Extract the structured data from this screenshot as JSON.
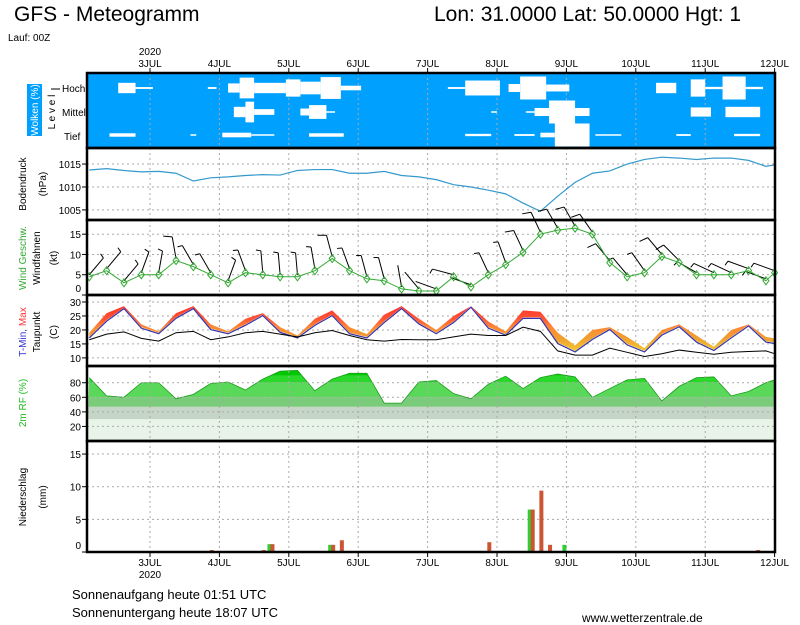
{
  "header": {
    "title": "GFS - Meteogramm",
    "location": "Lon: 31.0000 Lat: 50.0000 Hgt: 1",
    "run": "Lauf: 00Z"
  },
  "footer": {
    "sunrise": "Sonnenaufgang heute 01:51 UTC",
    "sunset": "Sonnenuntergang heute 18:07 UTC",
    "site": "www.wetterzentrale.de"
  },
  "time_axis": {
    "year": "2020",
    "range": [
      "2020-07-02T03",
      "2020-07-12T00"
    ],
    "days": [
      {
        "label": "3JUL",
        "date": "2020-07-03T00"
      },
      {
        "label": "4JUL",
        "date": "2020-07-04T00"
      },
      {
        "label": "5JUL",
        "date": "2020-07-05T00"
      },
      {
        "label": "6JUL",
        "date": "2020-07-06T00"
      },
      {
        "label": "7JUL",
        "date": "2020-07-07T00"
      },
      {
        "label": "8JUL",
        "date": "2020-07-08T00"
      },
      {
        "label": "9JUL",
        "date": "2020-07-09T00"
      },
      {
        "label": "10JUL",
        "date": "2020-07-10T00"
      },
      {
        "label": "11JUL",
        "date": "2020-07-11T00"
      },
      {
        "label": "12JUL",
        "date": "2020-07-12T00"
      }
    ]
  },
  "labels": {
    "clouds": "Wolken (%)",
    "level": "L e v e l",
    "levels": [
      "Hoch",
      "Mittel",
      "Tief"
    ],
    "pressure": "Bodendruck",
    "pressure_unit": "(hPa)",
    "wind": "Wind Geschw.",
    "wind_barbs": "Windfahnen",
    "wind_unit": "(kt)",
    "tmin": "T-Min,",
    "tmax": "Max",
    "dewpoint": "Taupunkt",
    "temp_unit": "(C)",
    "rh": "2m RF (%)",
    "precip": "Niederschlag",
    "precip_unit": "(mm)"
  },
  "colors": {
    "cloud_bg": "#00a0ff",
    "cloud": "#ffffff",
    "pressure": "#3399cc",
    "wind": "#33aa33",
    "tmin": "#3333aa",
    "tmax": "#ff3333",
    "dewpoint": "#000000",
    "rh": "#00cc00",
    "precip_green": "#33cc33",
    "precip_red": "#cc5533"
  },
  "chart_data": [
    {
      "type": "area",
      "panel": "clouds",
      "levels": [
        "Hoch",
        "Mittel",
        "Tief"
      ],
      "segments": [
        [
          "Hoch",
          "2020-07-02T13",
          "2020-07-02T19",
          45
        ],
        [
          "Hoch",
          "2020-07-02T19",
          "2020-07-03T01",
          8
        ],
        [
          "Hoch",
          "2020-07-03T20",
          "2020-07-03T23",
          8
        ],
        [
          "Hoch",
          "2020-07-04T03",
          "2020-07-04T07",
          40
        ],
        [
          "Hoch",
          "2020-07-04T07",
          "2020-07-04T12",
          90
        ],
        [
          "Hoch",
          "2020-07-04T12",
          "2020-07-04T23",
          45
        ],
        [
          "Hoch",
          "2020-07-04T23",
          "2020-07-05T04",
          75
        ],
        [
          "Hoch",
          "2020-07-05T04",
          "2020-07-05T11",
          55
        ],
        [
          "Hoch",
          "2020-07-05T11",
          "2020-07-05T18",
          95
        ],
        [
          "Hoch",
          "2020-07-05T18",
          "2020-07-06T01",
          20
        ],
        [
          "Hoch",
          "2020-07-07T07",
          "2020-07-07T13",
          8
        ],
        [
          "Hoch",
          "2020-07-07T13",
          "2020-07-08T01",
          65
        ],
        [
          "Hoch",
          "2020-07-08T04",
          "2020-07-08T08",
          35
        ],
        [
          "Hoch",
          "2020-07-08T08",
          "2020-07-08T17",
          100
        ],
        [
          "Hoch",
          "2020-07-08T17",
          "2020-07-09T01",
          30
        ],
        [
          "Hoch",
          "2020-07-10T07",
          "2020-07-10T14",
          45
        ],
        [
          "Hoch",
          "2020-07-10T19",
          "2020-07-11T00",
          75
        ],
        [
          "Hoch",
          "2020-07-11T00",
          "2020-07-11T06",
          10
        ],
        [
          "Hoch",
          "2020-07-11T06",
          "2020-07-11T14",
          100
        ],
        [
          "Hoch",
          "2020-07-11T14",
          "2020-07-11T20",
          10
        ],
        [
          "Mittel",
          "2020-07-04T05",
          "2020-07-04T09",
          45
        ],
        [
          "Mittel",
          "2020-07-04T09",
          "2020-07-04T12",
          90
        ],
        [
          "Mittel",
          "2020-07-04T12",
          "2020-07-04T19",
          25
        ],
        [
          "Mittel",
          "2020-07-05T04",
          "2020-07-05T07",
          30
        ],
        [
          "Mittel",
          "2020-07-05T07",
          "2020-07-05T13",
          60
        ],
        [
          "Mittel",
          "2020-07-05T13",
          "2020-07-05T16",
          5
        ],
        [
          "Mittel",
          "2020-07-07T22",
          "2020-07-08T00",
          5
        ],
        [
          "Mittel",
          "2020-07-08T10",
          "2020-07-08T13",
          5
        ],
        [
          "Mittel",
          "2020-07-08T13",
          "2020-07-08T18",
          35
        ],
        [
          "Mittel",
          "2020-07-08T18",
          "2020-07-09T03",
          100
        ],
        [
          "Mittel",
          "2020-07-09T03",
          "2020-07-09T08",
          35
        ],
        [
          "Mittel",
          "2020-07-10T19",
          "2020-07-11T02",
          40
        ],
        [
          "Mittel",
          "2020-07-11T07",
          "2020-07-11T19",
          45
        ],
        [
          "Tief",
          "2020-07-02T10",
          "2020-07-02T19",
          15
        ],
        [
          "Tief",
          "2020-07-03T14",
          "2020-07-03T16",
          5
        ],
        [
          "Tief",
          "2020-07-04T01",
          "2020-07-04T11",
          20
        ],
        [
          "Tief",
          "2020-07-04T11",
          "2020-07-04T19",
          5
        ],
        [
          "Tief",
          "2020-07-05T07",
          "2020-07-05T19",
          15
        ],
        [
          "Tief",
          "2020-07-07T13",
          "2020-07-07T22",
          10
        ],
        [
          "Tief",
          "2020-07-08T06",
          "2020-07-08T13",
          8
        ],
        [
          "Tief",
          "2020-07-08T15",
          "2020-07-08T20",
          20
        ],
        [
          "Tief",
          "2020-07-08T20",
          "2020-07-09T08",
          100
        ],
        [
          "Tief",
          "2020-07-09T10",
          "2020-07-09T19",
          5
        ],
        [
          "Tief",
          "2020-07-10T14",
          "2020-07-10T19",
          8
        ],
        [
          "Tief",
          "2020-07-11T10",
          "2020-07-11T19",
          10
        ]
      ]
    },
    {
      "type": "line",
      "panel": "pressure",
      "ylabel": "Bodendruck (hPa)",
      "yticks": [
        1005,
        1010,
        1015
      ],
      "ylim": [
        1002.8,
        1018.5
      ],
      "grid": true,
      "x": [
        "2020-07-02T03",
        "2020-07-02T09",
        "2020-07-02T15",
        "2020-07-02T21",
        "2020-07-03T03",
        "2020-07-03T09",
        "2020-07-03T15",
        "2020-07-03T21",
        "2020-07-04T03",
        "2020-07-04T09",
        "2020-07-04T15",
        "2020-07-04T21",
        "2020-07-05T03",
        "2020-07-05T09",
        "2020-07-05T15",
        "2020-07-05T21",
        "2020-07-06T03",
        "2020-07-06T09",
        "2020-07-06T15",
        "2020-07-06T21",
        "2020-07-07T03",
        "2020-07-07T09",
        "2020-07-07T15",
        "2020-07-07T21",
        "2020-07-08T03",
        "2020-07-08T09",
        "2020-07-08T15",
        "2020-07-08T21",
        "2020-07-09T03",
        "2020-07-09T09",
        "2020-07-09T15",
        "2020-07-09T21",
        "2020-07-10T03",
        "2020-07-10T09",
        "2020-07-10T15",
        "2020-07-10T21",
        "2020-07-11T03",
        "2020-07-11T09",
        "2020-07-11T15",
        "2020-07-11T21",
        "2020-07-12T00"
      ],
      "values": [
        1013.7,
        1014.0,
        1013.6,
        1013.3,
        1013.4,
        1013.0,
        1011.3,
        1012.0,
        1012.2,
        1012.5,
        1012.7,
        1012.6,
        1013.6,
        1013.8,
        1013.8,
        1013.0,
        1013.0,
        1013.4,
        1012.5,
        1012.2,
        1011.6,
        1010.5,
        1010.0,
        1009.3,
        1008.5,
        1006.5,
        1004.7,
        1008.0,
        1011.0,
        1013.0,
        1013.5,
        1015.0,
        1016.0,
        1016.5,
        1016.3,
        1016.0,
        1016.3,
        1016.3,
        1015.8,
        1014.5,
        1014.8
      ]
    },
    {
      "type": "line",
      "panel": "wind",
      "ylabel": "Wind Geschw. / Windfahnen (kt)",
      "yticks": [
        0,
        5,
        10,
        15
      ],
      "ylim": [
        0,
        18.5
      ],
      "grid": true,
      "speed_kt": [
        4.5,
        6,
        3,
        5,
        5,
        8.5,
        7,
        5,
        3,
        5.5,
        5,
        4.5,
        4.5,
        6,
        9,
        6,
        4,
        3.5,
        1.5,
        1,
        1,
        4.5,
        2,
        5,
        7.5,
        10.5,
        15,
        16,
        16.5,
        15,
        8,
        4.5,
        5.5,
        9.5,
        8,
        5,
        5,
        5,
        6,
        3.5,
        5.5
      ],
      "direction_deg": [
        40,
        40,
        40,
        20,
        10,
        350,
        330,
        330,
        20,
        340,
        355,
        355,
        355,
        350,
        345,
        340,
        345,
        345,
        350,
        320,
        290,
        285,
        290,
        335,
        340,
        335,
        335,
        330,
        330,
        325,
        320,
        320,
        325,
        320,
        315,
        300,
        295,
        295,
        290,
        290,
        290
      ]
    },
    {
      "type": "area",
      "panel": "temperature",
      "ylabel": "T-Min, Max / Taupunkt (C)",
      "yticks": [
        10,
        15,
        20,
        25,
        30
      ],
      "ylim": [
        7.1,
        32.5
      ],
      "grid": true,
      "series": [
        {
          "name": "T-Min",
          "values": [
            17.5,
            23.5,
            28,
            21,
            19,
            24.5,
            28,
            20.5,
            19,
            22,
            25.5,
            19.5,
            17.5,
            22,
            25.5,
            19,
            17.5,
            23,
            28,
            22.5,
            19,
            23,
            28.5,
            21,
            18.5,
            24.5,
            24.5,
            15.5,
            12.5,
            17,
            20.5,
            15,
            12.5,
            18.5,
            21.5,
            16,
            13,
            17.5,
            21.8,
            16,
            15.5
          ]
        },
        {
          "name": "Max",
          "values": [
            19,
            26,
            28.5,
            22,
            19.5,
            26,
            28.5,
            22,
            19.5,
            24,
            26,
            21,
            18,
            24,
            27,
            21,
            18.5,
            25.5,
            28.5,
            24,
            20,
            25,
            28.5,
            23,
            19.5,
            27,
            26.5,
            19,
            14.5,
            20,
            21,
            17.5,
            13.5,
            20,
            22,
            18,
            14,
            20,
            22,
            17.5,
            17
          ]
        },
        {
          "name": "Taupunkt",
          "values": [
            16.5,
            18.5,
            19.3,
            17,
            16,
            19,
            19.5,
            16.5,
            17.5,
            19,
            19.5,
            18.5,
            17.5,
            19,
            19.8,
            18,
            16.5,
            16,
            16.6,
            16.5,
            16.5,
            17.5,
            18.5,
            18,
            18,
            21,
            19.5,
            12.5,
            11,
            11,
            13.5,
            12,
            10.5,
            11.5,
            12.8,
            12,
            11.3,
            12,
            12.3,
            12.5,
            11.5
          ]
        }
      ]
    },
    {
      "type": "area",
      "panel": "humidity",
      "ylabel": "2m RF (%)",
      "yticks": [
        20,
        40,
        60,
        80
      ],
      "ylim": [
        0,
        103
      ],
      "grid": true,
      "values": [
        87,
        62,
        60,
        80,
        80,
        58,
        64,
        79,
        81,
        70,
        85,
        96,
        97,
        69,
        85,
        93,
        93,
        52,
        52,
        81,
        83,
        65,
        58,
        78,
        89,
        72,
        87,
        92,
        88,
        60,
        72,
        84,
        86,
        55,
        75,
        87,
        88,
        62,
        68,
        80,
        84
      ]
    },
    {
      "type": "bar",
      "panel": "precipitation",
      "ylabel": "Niederschlag (mm)",
      "yticks": [
        0,
        5,
        10,
        15
      ],
      "ylim": [
        0,
        17
      ],
      "grid": true,
      "bars": [
        {
          "t": "2020-07-03T21",
          "green": 0,
          "red": 0.3
        },
        {
          "t": "2020-07-04T15",
          "green": 0,
          "red": 0.3
        },
        {
          "t": "2020-07-04T18",
          "green": 1.2,
          "red": 1.2
        },
        {
          "t": "2020-07-05T15",
          "green": 1.1,
          "red": 1.1
        },
        {
          "t": "2020-07-05T18",
          "green": 0,
          "red": 1.8
        },
        {
          "t": "2020-07-07T21",
          "green": 0,
          "red": 1.5
        },
        {
          "t": "2020-07-08T12",
          "green": 6.5,
          "red": 6.5
        },
        {
          "t": "2020-07-08T15",
          "green": 0,
          "red": 9.4
        },
        {
          "t": "2020-07-08T18",
          "green": 0,
          "red": 1.1
        },
        {
          "t": "2020-07-09T00",
          "green": 1.1,
          "red": 0
        },
        {
          "t": "2020-07-11T18",
          "green": 0,
          "red": 0.3
        }
      ]
    }
  ]
}
